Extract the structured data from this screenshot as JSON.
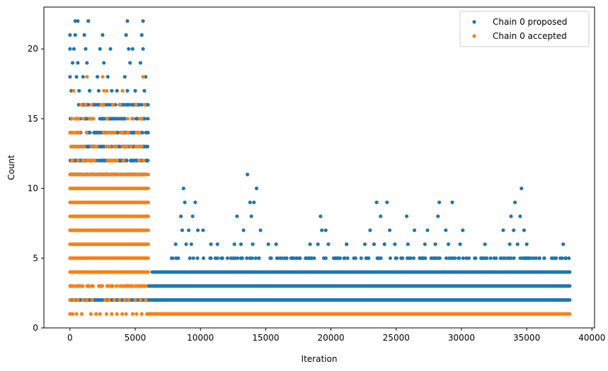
{
  "chart_data": {
    "type": "scatter",
    "title": "",
    "xlabel": "Iteration",
    "ylabel": "Count",
    "xlim": [
      -2000,
      40200
    ],
    "ylim": [
      0,
      23
    ],
    "x_ticks": [
      0,
      5000,
      10000,
      15000,
      20000,
      25000,
      30000,
      35000,
      40000
    ],
    "x_tick_labels": [
      "0",
      "5000",
      "10000",
      "15000",
      "20000",
      "25000",
      "30000",
      "35000",
      "40000"
    ],
    "y_ticks": [
      0,
      5,
      10,
      15,
      20
    ],
    "y_tick_labels": [
      "0",
      "5",
      "10",
      "15",
      "20"
    ],
    "grid": false,
    "legend_position": "top-right",
    "series": [
      {
        "name": "Chain 0 proposed",
        "color": "#1f77b4",
        "bands": [
          {
            "y": 2,
            "x_from": 0,
            "x_to": 38300
          },
          {
            "y": 3,
            "x_from": 6000,
            "x_to": 38300
          },
          {
            "y": 4,
            "x_from": 6300,
            "x_to": 38300
          }
        ],
        "points": [
          [
            400,
            22
          ],
          [
            600,
            22
          ],
          [
            1400,
            22
          ],
          [
            4400,
            22
          ],
          [
            5600,
            22
          ],
          [
            0,
            21
          ],
          [
            400,
            21
          ],
          [
            1100,
            21
          ],
          [
            2500,
            21
          ],
          [
            4300,
            21
          ],
          [
            5500,
            21
          ],
          [
            0,
            20
          ],
          [
            300,
            20
          ],
          [
            1200,
            20
          ],
          [
            2300,
            20
          ],
          [
            3100,
            20
          ],
          [
            4500,
            20
          ],
          [
            4800,
            20
          ],
          [
            5600,
            20
          ],
          [
            200,
            19
          ],
          [
            600,
            19
          ],
          [
            1300,
            19
          ],
          [
            2600,
            19
          ],
          [
            4600,
            19
          ],
          [
            5400,
            19
          ],
          [
            0,
            18
          ],
          [
            500,
            18
          ],
          [
            1000,
            18
          ],
          [
            2100,
            18
          ],
          [
            2900,
            18
          ],
          [
            4200,
            18
          ],
          [
            5800,
            18
          ],
          [
            100,
            17
          ],
          [
            700,
            17
          ],
          [
            1500,
            17
          ],
          [
            2200,
            17
          ],
          [
            3200,
            17
          ],
          [
            3600,
            17
          ],
          [
            4400,
            17
          ],
          [
            5000,
            17
          ],
          [
            5700,
            17
          ],
          [
            8700,
            10
          ],
          [
            14300,
            10
          ],
          [
            34600,
            10
          ],
          [
            13600,
            11
          ],
          [
            8500,
            8
          ],
          [
            9400,
            8
          ],
          [
            12800,
            8
          ],
          [
            13900,
            8
          ],
          [
            19200,
            8
          ],
          [
            23800,
            8
          ],
          [
            25800,
            8
          ],
          [
            28200,
            8
          ],
          [
            33800,
            8
          ],
          [
            34500,
            8
          ],
          [
            8800,
            9
          ],
          [
            9600,
            9
          ],
          [
            13800,
            9
          ],
          [
            14100,
            9
          ],
          [
            23500,
            9
          ],
          [
            24300,
            9
          ],
          [
            28300,
            9
          ],
          [
            29300,
            9
          ],
          [
            34100,
            9
          ],
          [
            8600,
            7
          ],
          [
            9100,
            7
          ],
          [
            9800,
            7
          ],
          [
            10200,
            7
          ],
          [
            13300,
            7
          ],
          [
            14600,
            7
          ],
          [
            19300,
            7
          ],
          [
            19600,
            7
          ],
          [
            23000,
            7
          ],
          [
            24500,
            7
          ],
          [
            26400,
            7
          ],
          [
            27400,
            7
          ],
          [
            28800,
            7
          ],
          [
            30100,
            7
          ],
          [
            33200,
            7
          ],
          [
            34000,
            7
          ],
          [
            34800,
            7
          ],
          [
            8100,
            6
          ],
          [
            8900,
            6
          ],
          [
            9300,
            6
          ],
          [
            10800,
            6
          ],
          [
            11300,
            6
          ],
          [
            12600,
            6
          ],
          [
            13100,
            6
          ],
          [
            14000,
            6
          ],
          [
            15200,
            6
          ],
          [
            15800,
            6
          ],
          [
            18400,
            6
          ],
          [
            19000,
            6
          ],
          [
            19800,
            6
          ],
          [
            21200,
            6
          ],
          [
            22600,
            6
          ],
          [
            23300,
            6
          ],
          [
            24100,
            6
          ],
          [
            24900,
            6
          ],
          [
            25900,
            6
          ],
          [
            27200,
            6
          ],
          [
            28000,
            6
          ],
          [
            29000,
            6
          ],
          [
            29900,
            6
          ],
          [
            31800,
            6
          ],
          [
            33700,
            6
          ],
          [
            34300,
            6
          ],
          [
            35000,
            6
          ],
          [
            37800,
            6
          ]
        ],
        "ranges": [
          {
            "y": 16,
            "x_from": 0,
            "x_to": 6000,
            "n": 46
          },
          {
            "y": 15,
            "x_from": 0,
            "x_to": 6000,
            "n": 60
          },
          {
            "y": 14,
            "x_from": 0,
            "x_to": 6000,
            "n": 70
          },
          {
            "y": 13,
            "x_from": 0,
            "x_to": 6000,
            "n": 90
          },
          {
            "y": 12,
            "x_from": 0,
            "x_to": 6000,
            "n": 100
          },
          {
            "y": 11,
            "x_from": 0,
            "x_to": 6000,
            "n": 140
          },
          {
            "y": 5,
            "x_from": 7500,
            "x_to": 38300,
            "n": 150
          }
        ]
      },
      {
        "name": "Chain 0 accepted",
        "color": "#ff7f0e",
        "bands": [
          {
            "y": 1,
            "x_from": 6000,
            "x_to": 38300
          },
          {
            "y": 4,
            "x_from": 0,
            "x_to": 6000
          },
          {
            "y": 5,
            "x_from": 0,
            "x_to": 6000
          },
          {
            "y": 6,
            "x_from": 0,
            "x_to": 6000
          },
          {
            "y": 7,
            "x_from": 0,
            "x_to": 6000
          },
          {
            "y": 8,
            "x_from": 0,
            "x_to": 6000
          },
          {
            "y": 9,
            "x_from": 0,
            "x_to": 6000
          },
          {
            "y": 10,
            "x_from": 0,
            "x_to": 6000
          },
          {
            "y": 11,
            "x_from": 0,
            "x_to": 6000
          }
        ],
        "points": [
          [
            1300,
            18
          ],
          [
            5600,
            18
          ],
          [
            2500,
            18
          ],
          [
            0,
            1
          ],
          [
            200,
            1
          ],
          [
            500,
            1
          ],
          [
            900,
            1
          ],
          [
            1600,
            1
          ],
          [
            2000,
            1
          ],
          [
            2300,
            1
          ],
          [
            2800,
            1
          ],
          [
            3200,
            1
          ],
          [
            3600,
            1
          ],
          [
            4000,
            1
          ],
          [
            4300,
            1
          ],
          [
            4800,
            1
          ],
          [
            5100,
            1
          ],
          [
            5500,
            1
          ],
          [
            5900,
            1
          ],
          [
            0,
            2
          ],
          [
            300,
            2
          ],
          [
            600,
            2
          ],
          [
            1000,
            2
          ],
          [
            1300,
            2
          ],
          [
            1700,
            2
          ],
          [
            2700,
            2
          ],
          [
            3000,
            2
          ],
          [
            3400,
            2
          ],
          [
            3800,
            2
          ],
          [
            4200,
            2
          ],
          [
            4500,
            2
          ],
          [
            5000,
            2
          ],
          [
            5400,
            2
          ],
          [
            5800,
            2
          ]
        ],
        "ranges": [
          {
            "y": 3,
            "x_from": 0,
            "x_to": 6000,
            "n": 60
          },
          {
            "y": 12,
            "x_from": 0,
            "x_to": 6000,
            "n": 25
          },
          {
            "y": 13,
            "x_from": 0,
            "x_to": 6000,
            "n": 30
          },
          {
            "y": 14,
            "x_from": 0,
            "x_to": 6000,
            "n": 22
          },
          {
            "y": 15,
            "x_from": 0,
            "x_to": 6000,
            "n": 14
          },
          {
            "y": 16,
            "x_from": 0,
            "x_to": 6000,
            "n": 10
          },
          {
            "y": 17,
            "x_from": 0,
            "x_to": 6000,
            "n": 4
          }
        ]
      }
    ]
  }
}
